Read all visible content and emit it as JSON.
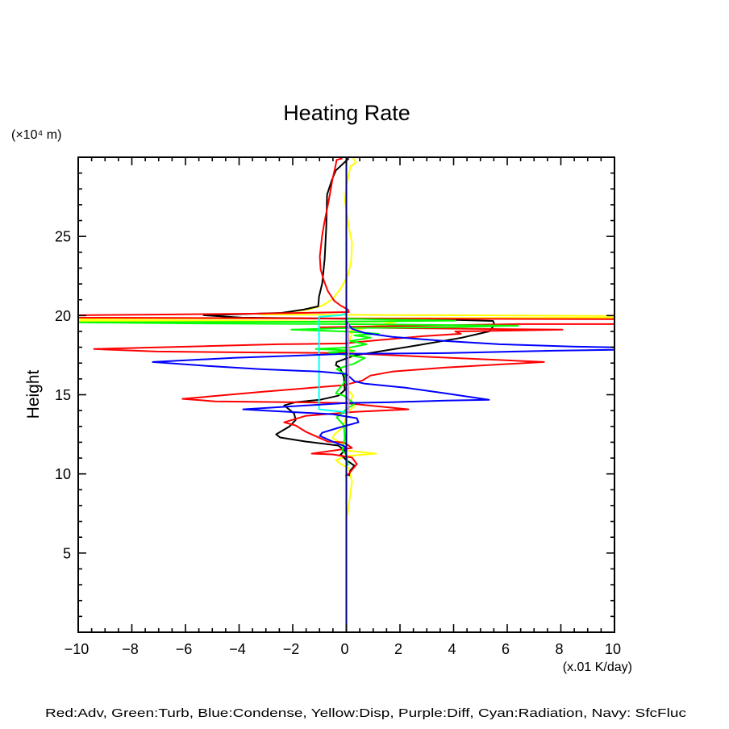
{
  "page": {
    "background": "#ffffff"
  },
  "chart_data": {
    "type": "line",
    "title": "Heating Rate",
    "xlabel": "(x.01 K/day)",
    "ylabel": "Height",
    "yunit": "(×10⁴ m)",
    "xlim": [
      -10,
      10
    ],
    "ylim": [
      0,
      30
    ],
    "xticks": [
      -10,
      -8,
      -6,
      -4,
      -2,
      0,
      2,
      4,
      6,
      8,
      10
    ],
    "xtick_labels": [
      "−10",
      "−8",
      "−6",
      "−4",
      "−2",
      "0",
      "2",
      "4",
      "6",
      "8",
      "10"
    ],
    "x_minor_step": 0.5,
    "yticks": [
      5,
      10,
      15,
      20,
      25
    ],
    "ytick_labels": [
      "5",
      "10",
      "15",
      "20",
      "25"
    ],
    "y_minor_step": 1,
    "grid": false,
    "legend": "bottom",
    "legend_caption": "Red:Adv, Green:Turb, Blue:Condense, Yellow:Disp, Purple:Diff, Cyan:Radiation, Navy: SfcFluc",
    "series": [
      {
        "name": "Disp",
        "color": "#FFFF00",
        "points": [
          [
            0.24,
            29.98
          ],
          [
            0.36,
            29.67
          ],
          [
            0.15,
            29.42
          ],
          [
            0,
            28.15
          ],
          [
            -0.06,
            27.29
          ],
          [
            0.09,
            25.61
          ],
          [
            0.21,
            24.59
          ],
          [
            0.18,
            23.42
          ],
          [
            0.06,
            22.56
          ],
          [
            -0.21,
            21.7
          ],
          [
            -0.51,
            21.04
          ],
          [
            -0.9,
            20.63
          ],
          [
            -1.41,
            20.38
          ],
          [
            -2.41,
            20.17
          ],
          [
            -3.22,
            20.07
          ],
          [
            3.85,
            20.02
          ],
          [
            10,
            19.97
          ],
          [
            10,
            19.87
          ],
          [
            0,
            19.82
          ],
          [
            -10,
            19.77
          ],
          [
            -10,
            19.66
          ],
          [
            -4.06,
            19.66
          ],
          [
            1.86,
            19.61
          ],
          [
            0.09,
            19.0
          ],
          [
            0.21,
            18.85
          ],
          [
            0.06,
            18.14
          ],
          [
            0.15,
            17.84
          ],
          [
            0.27,
            17.6
          ],
          [
            0.06,
            17.2
          ],
          [
            0,
            16.97
          ],
          [
            0,
            15.45
          ],
          [
            0.24,
            14.94
          ],
          [
            0.15,
            14.58
          ],
          [
            0.3,
            14.28
          ],
          [
            0.06,
            13.92
          ],
          [
            -0.15,
            12.91
          ],
          [
            -0.45,
            12.5
          ],
          [
            -0.51,
            12.25
          ],
          [
            -0.15,
            11.89
          ],
          [
            0,
            11.48
          ],
          [
            1.11,
            11.28
          ],
          [
            0,
            11.13
          ],
          [
            -0.39,
            10.87
          ],
          [
            -0.21,
            10.62
          ],
          [
            0.09,
            10.37
          ],
          [
            0.21,
            9.5
          ],
          [
            0.09,
            7.98
          ],
          [
            0.03,
            7.32
          ]
        ]
      },
      {
        "name": "Black (unlabeled)",
        "color": "#000000",
        "points": [
          [
            0.09,
            29.93
          ],
          [
            -0.39,
            29.17
          ],
          [
            -0.54,
            28.56
          ],
          [
            -0.72,
            27.64
          ],
          [
            -0.75,
            25.61
          ],
          [
            -0.81,
            23.58
          ],
          [
            -0.9,
            22.05
          ],
          [
            -1.02,
            21.19
          ],
          [
            -1.05,
            20.58
          ],
          [
            -1.59,
            20.38
          ],
          [
            -2.41,
            20.17
          ],
          [
            -5.32,
            20.02
          ],
          [
            -3.91,
            19.87
          ],
          [
            4.12,
            19.72
          ],
          [
            5.47,
            19.66
          ],
          [
            5.53,
            19.41
          ],
          [
            5.32,
            19.0
          ],
          [
            4.3,
            18.6
          ],
          [
            2.71,
            18.14
          ],
          [
            1.41,
            17.78
          ],
          [
            0.3,
            17.48
          ],
          [
            -0.36,
            17.07
          ],
          [
            -0.39,
            16.87
          ],
          [
            -0.24,
            16.72
          ],
          [
            -0.09,
            16.11
          ],
          [
            -0.06,
            15.29
          ],
          [
            -0.3,
            14.94
          ],
          [
            -0.99,
            14.68
          ],
          [
            -1.89,
            14.53
          ],
          [
            -2.32,
            14.33
          ],
          [
            -1.95,
            13.82
          ],
          [
            -1.89,
            13.41
          ],
          [
            -2.11,
            13.01
          ],
          [
            -2.62,
            12.5
          ],
          [
            -2.47,
            12.3
          ],
          [
            -1.5,
            12.04
          ],
          [
            -0.3,
            11.79
          ],
          [
            -0.06,
            11.48
          ],
          [
            -0.21,
            11.23
          ],
          [
            0,
            10.87
          ],
          [
            0.3,
            10.52
          ],
          [
            0.15,
            10.21
          ],
          [
            0.09,
            9.86
          ]
        ]
      },
      {
        "name": "Adv",
        "color": "#FF0000",
        "points": [
          [
            -0.15,
            29.93
          ],
          [
            -0.36,
            29.83
          ],
          [
            -0.42,
            29.32
          ],
          [
            -0.51,
            28.66
          ],
          [
            -0.66,
            27.24
          ],
          [
            -0.81,
            25.97
          ],
          [
            -0.9,
            25.1
          ],
          [
            -0.99,
            23.73
          ],
          [
            -0.96,
            22.92
          ],
          [
            -0.84,
            22.21
          ],
          [
            -0.69,
            21.54
          ],
          [
            -0.45,
            20.93
          ],
          [
            -0.21,
            20.63
          ],
          [
            0.06,
            20.38
          ],
          [
            0.09,
            20.22
          ],
          [
            -3.55,
            20.12
          ],
          [
            -6.77,
            20.07
          ],
          [
            -10,
            20.02
          ],
          [
            -10,
            19.87
          ],
          [
            -0.06,
            19.82
          ],
          [
            10,
            19.77
          ],
          [
            10,
            19.46
          ],
          [
            6.38,
            19.46
          ],
          [
            -0.96,
            19.26
          ],
          [
            8.06,
            19.11
          ],
          [
            4.06,
            19.0
          ],
          [
            4.27,
            18.85
          ],
          [
            2.86,
            18.7
          ],
          [
            0.84,
            18.39
          ],
          [
            -0.06,
            18.24
          ],
          [
            -2.56,
            18.19
          ],
          [
            -9.41,
            17.89
          ],
          [
            -7.07,
            17.73
          ],
          [
            -4.06,
            17.68
          ],
          [
            -0.06,
            17.63
          ],
          [
            7.37,
            17.07
          ],
          [
            3.7,
            16.72
          ],
          [
            1.71,
            16.46
          ],
          [
            0.9,
            16.21
          ],
          [
            0.6,
            15.9
          ],
          [
            -0.09,
            15.6
          ],
          [
            -0.51,
            15.55
          ],
          [
            -3.1,
            15.19
          ],
          [
            -6.11,
            14.74
          ],
          [
            -4.9,
            14.58
          ],
          [
            -2.11,
            14.53
          ],
          [
            -0.09,
            14.48
          ],
          [
            2.32,
            14.08
          ],
          [
            0.3,
            13.92
          ],
          [
            -1.5,
            13.67
          ],
          [
            -2.32,
            13.26
          ],
          [
            -1.89,
            13.06
          ],
          [
            -1.5,
            12.65
          ],
          [
            -0.69,
            12.04
          ],
          [
            -0.09,
            11.99
          ],
          [
            0.21,
            11.64
          ],
          [
            -1.29,
            11.28
          ],
          [
            -0.51,
            11.23
          ],
          [
            0.21,
            11.03
          ],
          [
            0.39,
            10.62
          ],
          [
            0.09,
            10.01
          ],
          [
            -0.03,
            9.86
          ]
        ]
      },
      {
        "name": "Turb",
        "color": "#00FF00",
        "points": [
          [
            0,
            19.8
          ],
          [
            4.06,
            19.68
          ],
          [
            0,
            19.62
          ],
          [
            -10,
            19.57
          ],
          [
            -5.86,
            19.51
          ],
          [
            -0.06,
            19.46
          ],
          [
            6.41,
            19.36
          ],
          [
            3.67,
            19.26
          ],
          [
            0,
            19.21
          ],
          [
            -2.05,
            19.11
          ],
          [
            -0.06,
            19.0
          ],
          [
            1.2,
            18.85
          ],
          [
            0.3,
            18.75
          ],
          [
            0.9,
            18.6
          ],
          [
            0.15,
            18.39
          ],
          [
            0.75,
            18.19
          ],
          [
            0.15,
            17.99
          ],
          [
            -1.14,
            17.89
          ],
          [
            0.3,
            17.78
          ],
          [
            -0.66,
            17.68
          ],
          [
            0.69,
            17.33
          ],
          [
            0.3,
            16.97
          ],
          [
            -0.36,
            16.62
          ],
          [
            -0.06,
            16.31
          ],
          [
            0,
            15.96
          ],
          [
            -0.39,
            15.09
          ],
          [
            -0.09,
            14.94
          ],
          [
            0.3,
            14.43
          ],
          [
            0,
            14.08
          ],
          [
            -0.36,
            13.57
          ],
          [
            -0.09,
            13.06
          ],
          [
            -0.06,
            12.25
          ],
          [
            -0.15,
            11.48
          ],
          [
            0,
            11.23
          ],
          [
            0.06,
            10.52
          ]
        ]
      },
      {
        "name": "Radiation",
        "color": "#00FFFF",
        "points": [
          [
            0,
            20.12
          ],
          [
            -0.21,
            20.02
          ],
          [
            -1.02,
            19.92
          ],
          [
            -1.02,
            14.08
          ],
          [
            -0.09,
            13.92
          ],
          [
            0,
            13.82
          ]
        ]
      },
      {
        "name": "Condense",
        "color": "#0000FF",
        "points": [
          [
            0,
            29.93
          ],
          [
            0,
            19.61
          ],
          [
            0.21,
            19.16
          ],
          [
            0.69,
            18.9
          ],
          [
            1.71,
            18.65
          ],
          [
            3.7,
            18.39
          ],
          [
            5.71,
            18.19
          ],
          [
            8.42,
            18.04
          ],
          [
            10,
            17.99
          ],
          [
            10,
            17.84
          ],
          [
            7.73,
            17.78
          ],
          [
            3.7,
            17.63
          ],
          [
            0,
            17.58
          ],
          [
            -4.21,
            17.33
          ],
          [
            -7.22,
            17.07
          ],
          [
            -5.2,
            16.82
          ],
          [
            -3.22,
            16.62
          ],
          [
            -0.99,
            16.46
          ],
          [
            0,
            16.31
          ],
          [
            0.3,
            15.85
          ],
          [
            0.69,
            15.7
          ],
          [
            2.2,
            15.45
          ],
          [
            3.7,
            15.09
          ],
          [
            5.32,
            14.68
          ],
          [
            3.7,
            14.63
          ],
          [
            1.71,
            14.53
          ],
          [
            0,
            14.48
          ],
          [
            -3.85,
            14.08
          ],
          [
            -2.71,
            13.97
          ],
          [
            -0.51,
            13.77
          ],
          [
            0.39,
            13.52
          ],
          [
            0.45,
            13.26
          ],
          [
            -0.3,
            12.91
          ],
          [
            -0.9,
            12.6
          ],
          [
            -0.99,
            12.4
          ],
          [
            -0.51,
            12.04
          ],
          [
            -0.06,
            11.74
          ],
          [
            0,
            11.13
          ]
        ]
      },
      {
        "name": "Diff",
        "color": "#CC99CC",
        "points": [
          [
            0.08,
            19.56
          ],
          [
            0.08,
            13.82
          ]
        ]
      },
      {
        "name": "SfcFluc",
        "color": "#000080",
        "points": [
          [
            0,
            0
          ],
          [
            0,
            30
          ]
        ]
      }
    ]
  }
}
